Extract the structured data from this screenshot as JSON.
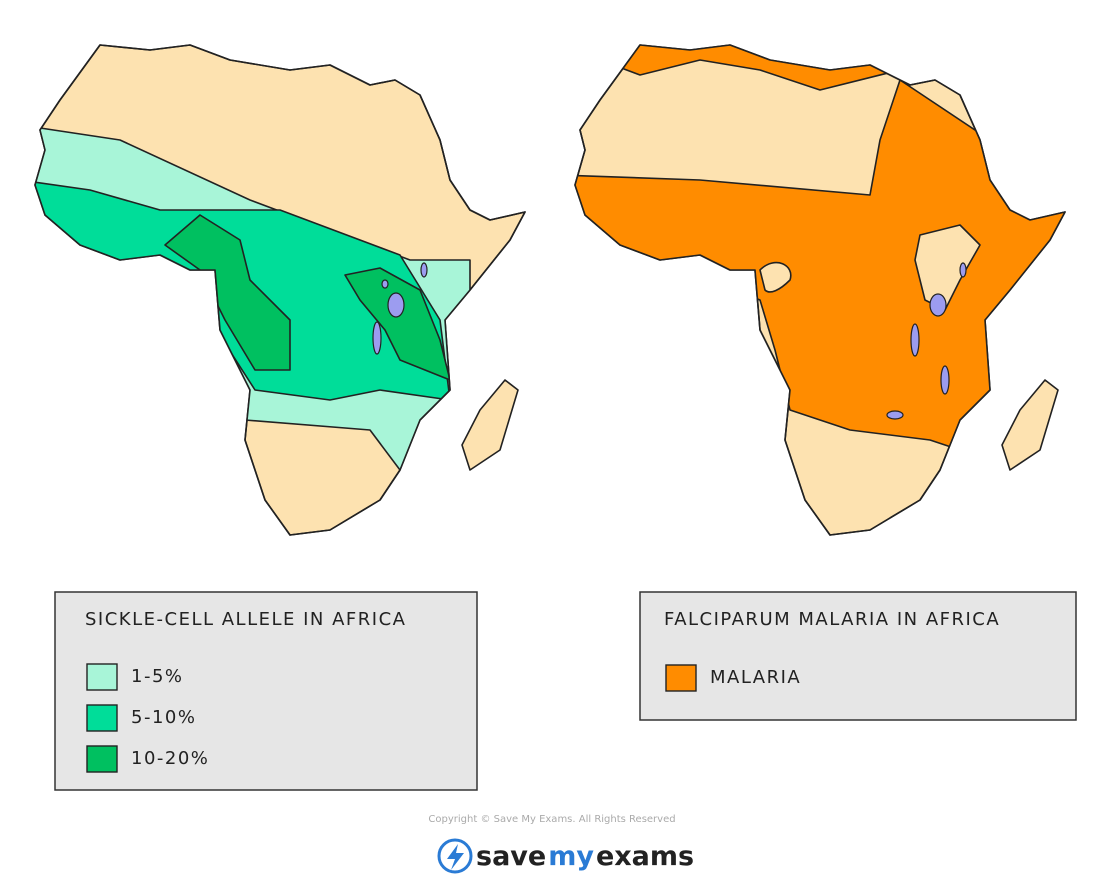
{
  "left_legend": {
    "title": "SICKLE-CELL  ALLELE  IN  AFRICA",
    "items": [
      {
        "label": "1-5%",
        "color": "#a8f5d8"
      },
      {
        "label": "5-10%",
        "color": "#00dd99"
      },
      {
        "label": "10-20%",
        "color": "#00c060"
      }
    ]
  },
  "right_legend": {
    "title": "FALCIPARUM  MALARIA  IN  AFRICA",
    "items": [
      {
        "label": "MALARIA",
        "color": "#ff8c00"
      }
    ]
  },
  "land_color": "#fde2b0",
  "lake_color": "#9c9cf0",
  "copyright": "Copyright © Save My Exams. All Rights Reserved",
  "logo": {
    "parts": [
      "save",
      "my",
      "exams"
    ]
  }
}
